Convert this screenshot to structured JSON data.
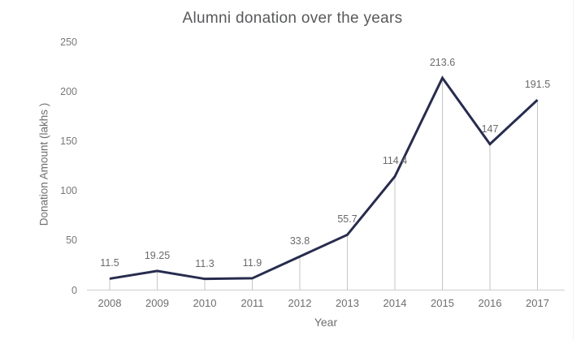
{
  "chart_data": {
    "type": "line",
    "title": "Alumni donation over the years",
    "xlabel": "Year",
    "ylabel": "Donation Amount (lakhs )",
    "categories": [
      "2008",
      "2009",
      "2010",
      "2011",
      "2012",
      "2013",
      "2014",
      "2015",
      "2016",
      "2017"
    ],
    "values": [
      11.5,
      19.25,
      11.3,
      11.9,
      33.8,
      55.7,
      114.4,
      213.6,
      147,
      191.5
    ],
    "data_labels": [
      "11.5",
      "19.25",
      "11.3",
      "11.9",
      "33.8",
      "55.7",
      "114.4",
      "213.6",
      "147",
      "191.5"
    ],
    "yticks": [
      "0",
      "50",
      "100",
      "150",
      "200",
      "250"
    ],
    "ylim": [
      0,
      250
    ],
    "grid": "none",
    "droplines": "vertical-from-each-point",
    "legend": "none",
    "colors": {
      "line": "#272c4e",
      "dropline": "#c6c6c6",
      "axis_line": "#d9d9d9",
      "title_text": "#58595b",
      "axis_text": "#6e6e6e",
      "data_label_text": "#6a6a6a",
      "background": "#ffffff"
    }
  }
}
